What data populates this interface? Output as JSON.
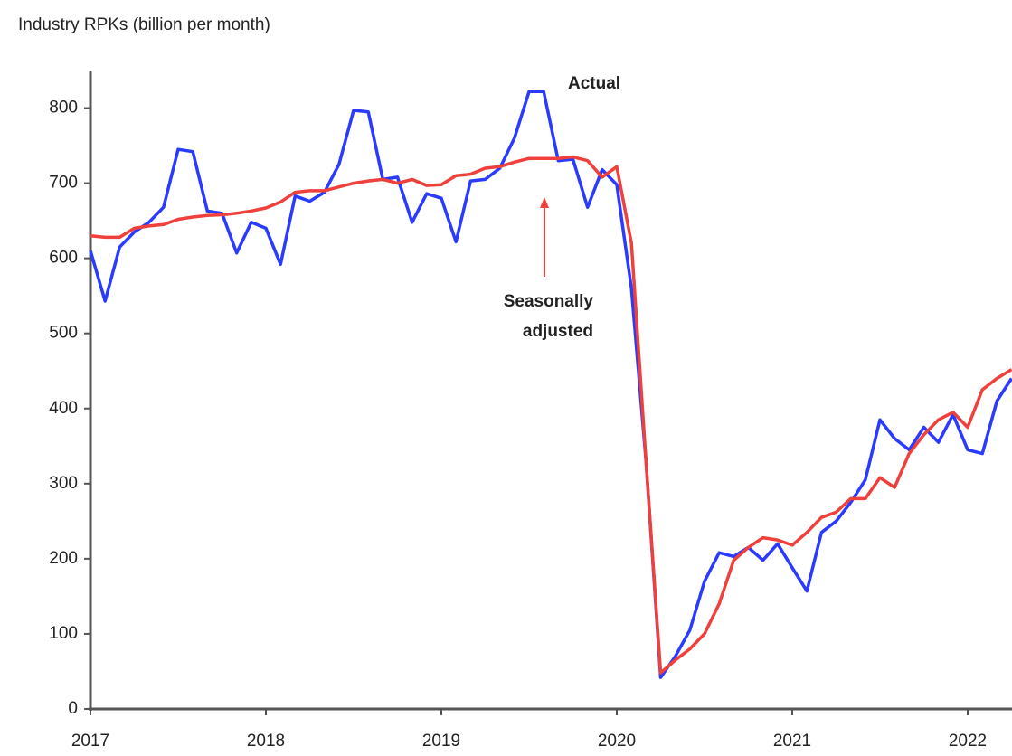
{
  "chart_data": {
    "type": "line",
    "title": "Industry RPKs (billion per month)",
    "categories": [
      "2017",
      null,
      null,
      null,
      null,
      null,
      null,
      null,
      null,
      null,
      null,
      null,
      "2018",
      null,
      null,
      null,
      null,
      null,
      null,
      null,
      null,
      null,
      null,
      null,
      "2019",
      null,
      null,
      null,
      null,
      null,
      null,
      null,
      null,
      null,
      null,
      null,
      "2020",
      null,
      null,
      null,
      null,
      null,
      null,
      null,
      null,
      null,
      null,
      null,
      "2021",
      null,
      null,
      null,
      null,
      null,
      null,
      null,
      null,
      null,
      null,
      null,
      "2022",
      null,
      null,
      null
    ],
    "series": [
      {
        "name": "Actual",
        "color": "#2a3bff",
        "values": [
          610,
          543,
          615,
          635,
          648,
          668,
          745,
          742,
          663,
          660,
          607,
          648,
          640,
          592,
          683,
          676,
          688,
          725,
          797,
          795,
          705,
          708,
          648,
          686,
          680,
          622,
          703,
          705,
          720,
          760,
          822,
          822,
          730,
          732,
          668,
          718,
          698,
          560,
          330,
          42,
          70,
          105,
          170,
          208,
          203,
          215,
          198,
          220,
          188,
          157,
          235,
          250,
          275,
          305,
          385,
          360,
          345,
          375,
          355,
          392,
          345,
          340,
          410,
          440
        ]
      },
      {
        "name": "Seasonally adjusted",
        "color": "#f0403c",
        "values": [
          630,
          628,
          628,
          640,
          643,
          645,
          652,
          655,
          657,
          658,
          660,
          663,
          667,
          675,
          688,
          690,
          690,
          695,
          700,
          703,
          705,
          700,
          705,
          697,
          698,
          710,
          712,
          720,
          722,
          728,
          733,
          733,
          733,
          735,
          730,
          708,
          722,
          620,
          330,
          48,
          65,
          80,
          100,
          140,
          198,
          215,
          228,
          225,
          218,
          235,
          255,
          262,
          280,
          280,
          308,
          295,
          340,
          365,
          385,
          395,
          375,
          425,
          440,
          452
        ]
      }
    ],
    "annotations": [
      {
        "text": [
          "Actual"
        ],
        "color": "#2a3bff"
      },
      {
        "text": [
          "Seasonally",
          "adjusted"
        ],
        "color": "#f0403c"
      }
    ],
    "ylim": [
      0,
      850
    ],
    "yticks": [
      0,
      100,
      200,
      300,
      400,
      500,
      600,
      700,
      800
    ],
    "grid": false
  }
}
